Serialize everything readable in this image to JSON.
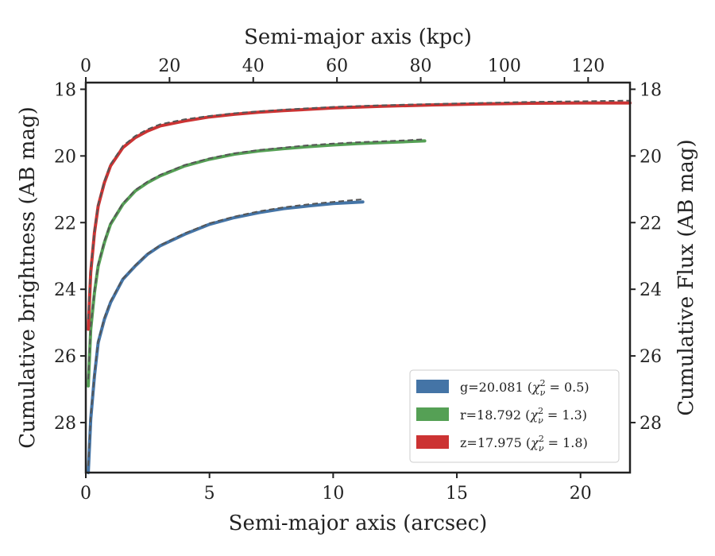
{
  "chart_data": {
    "type": "line",
    "xlabel": "Semi-major axis (arcsec)",
    "ylabel": "Cumulative brightness (AB mag)",
    "x2label": "Semi-major axis (kpc)",
    "y2label": "Cumulative Flux (AB mag)",
    "xlim": [
      0,
      22
    ],
    "ylim": [
      29.5,
      17.8
    ],
    "x2lim": [
      0,
      130
    ],
    "xticks": [
      0,
      5,
      10,
      15,
      20
    ],
    "yticks": [
      18,
      20,
      22,
      24,
      26,
      28
    ],
    "x2ticks": [
      0,
      20,
      40,
      60,
      80,
      100,
      120
    ],
    "y_inverted": true,
    "grid": false,
    "legend_position": "lower-right",
    "series": [
      {
        "name": "g=20.081 (χ²ν = 0.5)",
        "legend_main": "g=20.081 (",
        "legend_chi": "χ",
        "legend_sup": "2",
        "legend_sub": "ν",
        "legend_tail": " = 0.5)",
        "color": "#4474a6",
        "x": [
          0.1,
          0.2,
          0.35,
          0.5,
          0.75,
          1.0,
          1.5,
          2.0,
          2.5,
          3.0,
          4.0,
          5.0,
          6.0,
          7.0,
          8.0,
          9.0,
          10.0,
          11.2
        ],
        "y": [
          29.5,
          27.9,
          26.6,
          25.6,
          24.9,
          24.4,
          23.7,
          23.3,
          22.95,
          22.7,
          22.35,
          22.05,
          21.85,
          21.7,
          21.58,
          21.5,
          21.43,
          21.38
        ],
        "fit_x": [
          0.1,
          0.2,
          0.35,
          0.5,
          0.75,
          1.0,
          1.5,
          2.0,
          2.5,
          3.0,
          4.0,
          5.0,
          6.0,
          7.0,
          8.0,
          9.0,
          10.0,
          11.2
        ],
        "fit_y": [
          29.3,
          27.8,
          26.55,
          25.55,
          24.85,
          24.35,
          23.68,
          23.28,
          22.93,
          22.68,
          22.32,
          22.02,
          21.82,
          21.66,
          21.54,
          21.45,
          21.38,
          21.3
        ]
      },
      {
        "name": "r=18.792 (χ²ν = 1.3)",
        "legend_main": "r=18.792 (",
        "legend_chi": "χ",
        "legend_sup": "2",
        "legend_sub": "ν",
        "legend_tail": " = 1.3)",
        "color": "#55a055",
        "x": [
          0.1,
          0.2,
          0.35,
          0.5,
          0.75,
          1.0,
          1.5,
          2.0,
          2.5,
          3.0,
          4.0,
          5.0,
          6.0,
          7.0,
          8.0,
          9.0,
          10.0,
          11.0,
          12.0,
          13.0,
          13.7
        ],
        "y": [
          26.9,
          25.2,
          24.1,
          23.3,
          22.6,
          22.05,
          21.45,
          21.05,
          20.8,
          20.6,
          20.3,
          20.1,
          19.95,
          19.85,
          19.78,
          19.72,
          19.67,
          19.63,
          19.6,
          19.57,
          19.55
        ],
        "fit_x": [
          0.1,
          0.2,
          0.35,
          0.5,
          0.75,
          1.0,
          1.5,
          2.0,
          2.5,
          3.0,
          4.0,
          5.0,
          6.0,
          7.0,
          8.0,
          9.0,
          10.0,
          11.0,
          12.0,
          13.0,
          13.7
        ],
        "fit_y": [
          26.7,
          25.1,
          24.05,
          23.25,
          22.55,
          22.02,
          21.42,
          21.02,
          20.77,
          20.57,
          20.27,
          20.07,
          19.92,
          19.82,
          19.75,
          19.68,
          19.63,
          19.59,
          19.56,
          19.53,
          19.5
        ]
      },
      {
        "name": "z=17.975 (χ²ν = 1.8)",
        "legend_main": "z=17.975 (",
        "legend_chi": "χ",
        "legend_sup": "2",
        "legend_sub": "ν",
        "legend_tail": " = 1.8)",
        "color": "#cc3333",
        "x": [
          0.1,
          0.2,
          0.35,
          0.5,
          0.75,
          1.0,
          1.5,
          2.0,
          2.5,
          3.0,
          4.0,
          5.0,
          6.0,
          7.0,
          8.0,
          10.0,
          12.0,
          14.0,
          16.0,
          18.0,
          20.0,
          22.0
        ],
        "y": [
          25.2,
          23.5,
          22.3,
          21.5,
          20.8,
          20.3,
          19.75,
          19.45,
          19.25,
          19.1,
          18.95,
          18.83,
          18.75,
          18.69,
          18.64,
          18.56,
          18.51,
          18.47,
          18.44,
          18.42,
          18.41,
          18.41
        ],
        "fit_x": [
          0.1,
          0.2,
          0.35,
          0.5,
          0.75,
          1.0,
          1.5,
          2.0,
          2.5,
          3.0,
          4.0,
          5.0,
          6.0,
          7.0,
          8.0,
          10.0,
          12.0,
          14.0,
          16.0,
          18.0,
          20.0,
          22.0
        ],
        "fit_y": [
          24.9,
          23.4,
          22.25,
          21.45,
          20.75,
          20.25,
          19.7,
          19.4,
          19.2,
          19.05,
          18.9,
          18.8,
          18.72,
          18.66,
          18.61,
          18.53,
          18.48,
          18.44,
          18.41,
          18.38,
          18.36,
          18.34
        ]
      }
    ]
  }
}
